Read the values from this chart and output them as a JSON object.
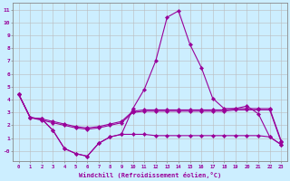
{
  "xlabel": "Windchill (Refroidissement éolien,°C)",
  "hours": [
    0,
    1,
    2,
    3,
    4,
    5,
    6,
    7,
    8,
    9,
    10,
    11,
    12,
    13,
    14,
    15,
    16,
    17,
    18,
    19,
    20,
    21,
    22,
    23
  ],
  "temp": [
    4.4,
    2.6,
    2.5,
    1.6,
    0.2,
    -0.2,
    -0.4,
    0.6,
    1.1,
    1.3,
    3.3,
    4.8,
    7.0,
    10.4,
    10.9,
    8.3,
    6.5,
    4.1,
    3.3,
    3.3,
    3.5,
    2.9,
    1.1,
    0.5
  ],
  "wc_line2": [
    4.4,
    2.6,
    2.4,
    2.2,
    2.0,
    1.8,
    1.7,
    1.8,
    2.0,
    2.2,
    3.0,
    3.1,
    3.1,
    3.1,
    3.1,
    3.1,
    3.1,
    3.1,
    3.1,
    3.2,
    3.2,
    3.2,
    3.2,
    0.7
  ],
  "wc_line3": [
    4.4,
    2.6,
    2.5,
    2.3,
    2.1,
    1.9,
    1.8,
    1.9,
    2.1,
    2.3,
    3.1,
    3.2,
    3.2,
    3.2,
    3.2,
    3.2,
    3.2,
    3.2,
    3.2,
    3.3,
    3.3,
    3.3,
    3.3,
    0.8
  ],
  "wc_low": [
    4.4,
    2.6,
    2.5,
    1.6,
    0.2,
    -0.2,
    -0.4,
    0.6,
    1.1,
    1.3,
    1.3,
    1.3,
    1.2,
    1.2,
    1.2,
    1.2,
    1.2,
    1.2,
    1.2,
    1.2,
    1.2,
    1.2,
    1.1,
    0.5
  ],
  "line_color": "#990099",
  "bg_color": "#cceeff",
  "grid_color": "#bbbbbb",
  "ylim": [
    -0.8,
    11.5
  ],
  "yticks": [
    0,
    1,
    2,
    3,
    4,
    5,
    6,
    7,
    8,
    9,
    10,
    11
  ],
  "ytick_labels": [
    "-0",
    "1",
    "2",
    "3",
    "4",
    "5",
    "6",
    "7",
    "8",
    "9",
    "10",
    "11"
  ]
}
